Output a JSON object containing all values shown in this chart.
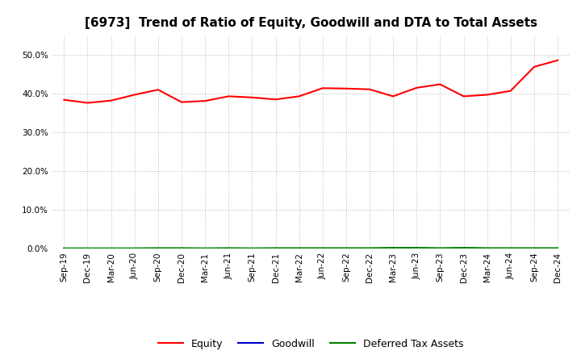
{
  "title": "[6973]  Trend of Ratio of Equity, Goodwill and DTA to Total Assets",
  "x_labels": [
    "Sep-19",
    "Dec-19",
    "Mar-20",
    "Jun-20",
    "Sep-20",
    "Dec-20",
    "Mar-21",
    "Jun-21",
    "Sep-21",
    "Dec-21",
    "Mar-22",
    "Jun-22",
    "Sep-22",
    "Dec-22",
    "Mar-23",
    "Jun-23",
    "Sep-23",
    "Dec-23",
    "Mar-24",
    "Jun-24",
    "Sep-24",
    "Dec-24"
  ],
  "equity": [
    0.384,
    0.376,
    0.382,
    0.397,
    0.41,
    0.378,
    0.381,
    0.393,
    0.39,
    0.385,
    0.393,
    0.414,
    0.413,
    0.411,
    0.393,
    0.415,
    0.424,
    0.393,
    0.397,
    0.407,
    0.469,
    0.486
  ],
  "goodwill": [
    0.0,
    0.0,
    0.0,
    0.0,
    0.0,
    0.0,
    0.0,
    0.0,
    0.0,
    0.0,
    0.0,
    0.0,
    0.0,
    0.0,
    0.0,
    0.0,
    0.0,
    0.0,
    0.0,
    0.0,
    0.0,
    0.0
  ],
  "dta": [
    0.0005,
    0.0005,
    0.0005,
    0.0005,
    0.001,
    0.001,
    0.0005,
    0.001,
    0.0005,
    0.001,
    0.001,
    0.001,
    0.001,
    0.001,
    0.002,
    0.002,
    0.001,
    0.002,
    0.001,
    0.001,
    0.001,
    0.001
  ],
  "equity_color": "#ff0000",
  "goodwill_color": "#0000cd",
  "dta_color": "#008000",
  "ylim": [
    0.0,
    0.55
  ],
  "yticks": [
    0.0,
    0.1,
    0.2,
    0.3,
    0.4,
    0.5
  ],
  "background_color": "#ffffff",
  "grid_color": "#bbbbbb",
  "title_fontsize": 11,
  "tick_fontsize": 7.5,
  "legend_fontsize": 9
}
